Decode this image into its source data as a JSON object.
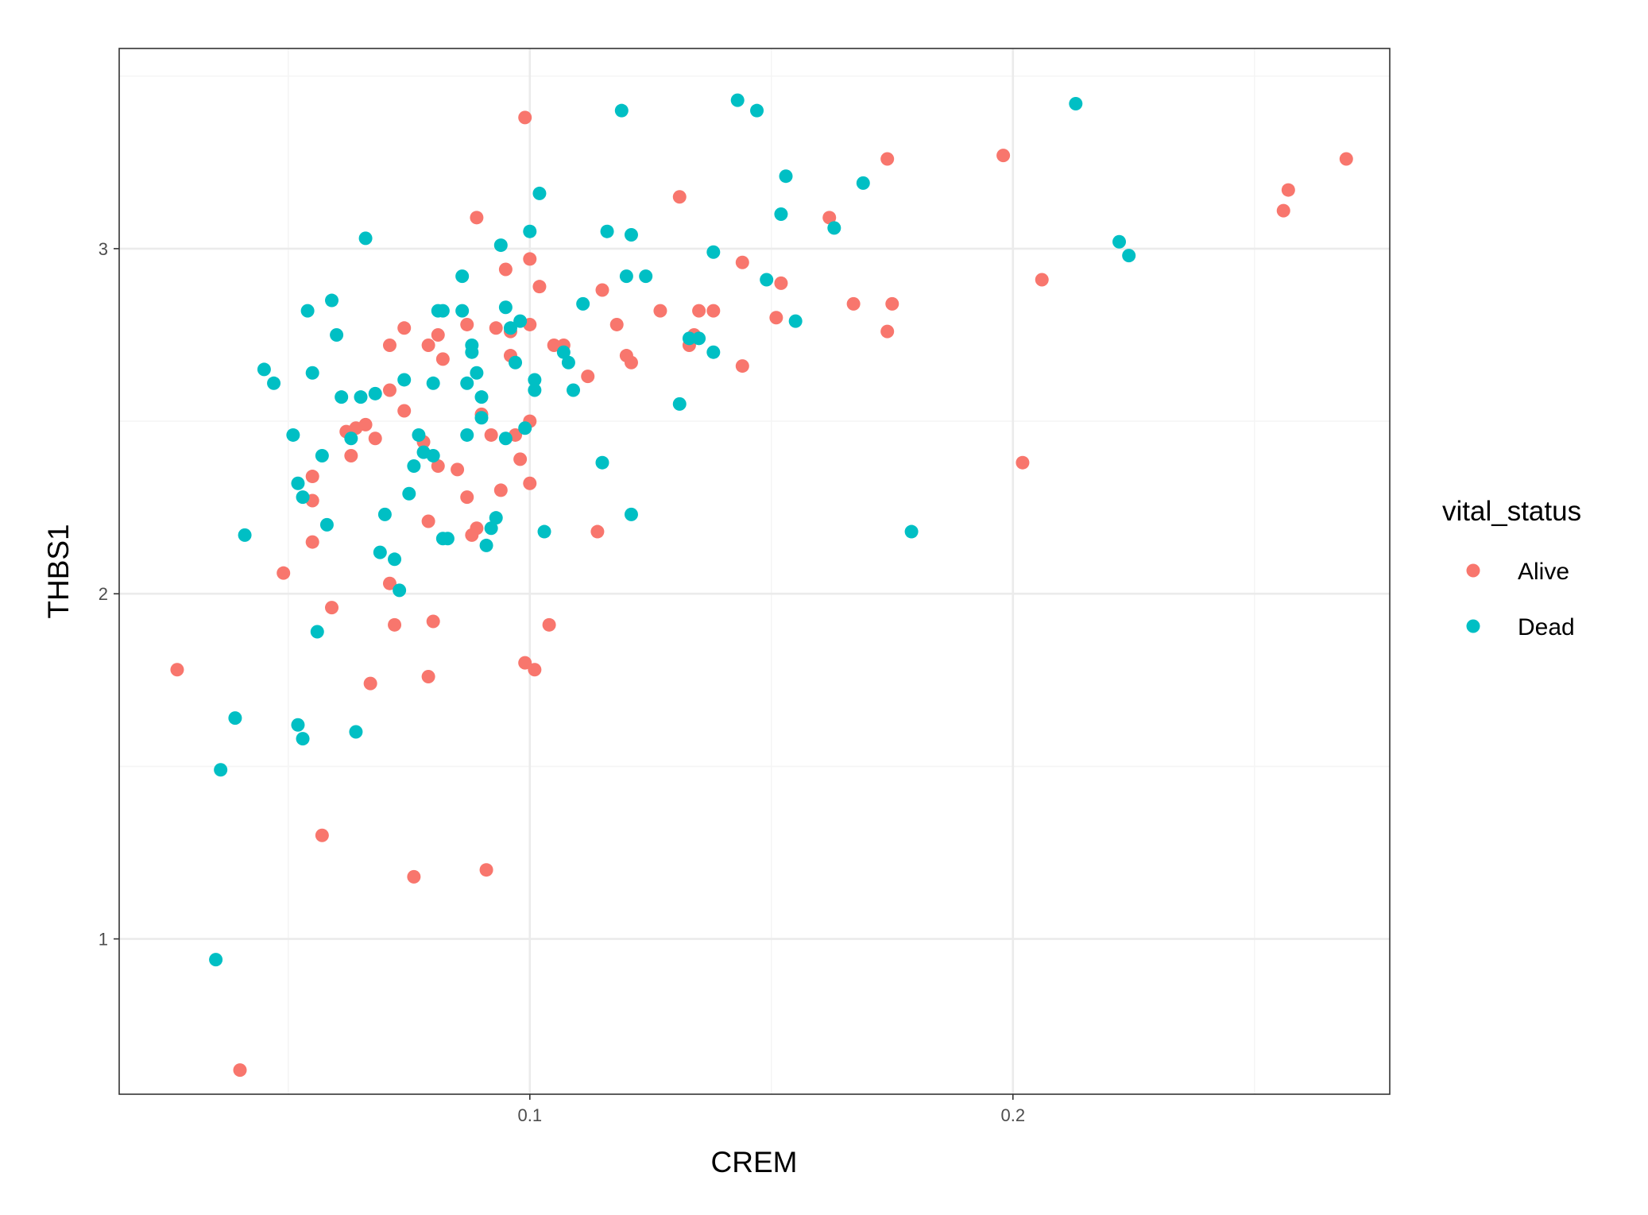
{
  "chart_data": {
    "type": "scatter",
    "xlabel": "CREM",
    "ylabel": "THBS1",
    "xlim": [
      0.015,
      0.278
    ],
    "ylim": [
      0.55,
      3.58
    ],
    "x_ticks": [
      {
        "value": 0.1,
        "label": "0.1"
      },
      {
        "value": 0.2,
        "label": "0.2"
      }
    ],
    "y_ticks": [
      {
        "value": 1,
        "label": "1"
      },
      {
        "value": 2,
        "label": "2"
      },
      {
        "value": 3,
        "label": "3"
      }
    ],
    "x_minor": [
      0.05,
      0.15,
      0.25
    ],
    "y_minor": [
      1.5,
      2.5,
      3.5
    ],
    "grid": true,
    "legend": {
      "title": "vital_status",
      "placement": "right"
    },
    "colors": {
      "Alive": "#F8766D",
      "Dead": "#00BFC4",
      "panel_border": "#333333",
      "grid_major": "#ebebeb",
      "grid_minor": "#f5f5f5"
    },
    "series": [
      {
        "name": "Alive",
        "points": [
          [
            0.027,
            1.78
          ],
          [
            0.04,
            0.62
          ],
          [
            0.049,
            2.06
          ],
          [
            0.055,
            2.34
          ],
          [
            0.055,
            2.27
          ],
          [
            0.055,
            2.15
          ],
          [
            0.057,
            1.3
          ],
          [
            0.059,
            1.96
          ],
          [
            0.062,
            2.47
          ],
          [
            0.063,
            2.4
          ],
          [
            0.064,
            2.48
          ],
          [
            0.066,
            2.49
          ],
          [
            0.067,
            1.74
          ],
          [
            0.068,
            2.45
          ],
          [
            0.071,
            2.72
          ],
          [
            0.071,
            2.59
          ],
          [
            0.071,
            2.03
          ],
          [
            0.072,
            1.91
          ],
          [
            0.074,
            2.77
          ],
          [
            0.074,
            2.53
          ],
          [
            0.076,
            1.18
          ],
          [
            0.078,
            2.44
          ],
          [
            0.079,
            2.72
          ],
          [
            0.079,
            2.21
          ],
          [
            0.079,
            1.76
          ],
          [
            0.08,
            1.92
          ],
          [
            0.081,
            2.75
          ],
          [
            0.081,
            2.37
          ],
          [
            0.082,
            2.68
          ],
          [
            0.085,
            2.36
          ],
          [
            0.087,
            2.78
          ],
          [
            0.087,
            2.28
          ],
          [
            0.088,
            2.17
          ],
          [
            0.089,
            2.19
          ],
          [
            0.089,
            3.09
          ],
          [
            0.09,
            2.52
          ],
          [
            0.091,
            1.2
          ],
          [
            0.092,
            2.46
          ],
          [
            0.093,
            2.77
          ],
          [
            0.094,
            2.3
          ],
          [
            0.095,
            2.94
          ],
          [
            0.096,
            2.76
          ],
          [
            0.096,
            2.69
          ],
          [
            0.097,
            2.46
          ],
          [
            0.098,
            2.39
          ],
          [
            0.099,
            3.38
          ],
          [
            0.099,
            1.8
          ],
          [
            0.1,
            2.32
          ],
          [
            0.1,
            2.5
          ],
          [
            0.1,
            2.97
          ],
          [
            0.1,
            2.78
          ],
          [
            0.101,
            1.78
          ],
          [
            0.102,
            2.89
          ],
          [
            0.104,
            1.91
          ],
          [
            0.105,
            2.72
          ],
          [
            0.107,
            2.72
          ],
          [
            0.112,
            2.63
          ],
          [
            0.114,
            2.18
          ],
          [
            0.115,
            2.88
          ],
          [
            0.118,
            2.78
          ],
          [
            0.12,
            2.69
          ],
          [
            0.121,
            2.67
          ],
          [
            0.127,
            2.82
          ],
          [
            0.131,
            3.15
          ],
          [
            0.133,
            2.72
          ],
          [
            0.134,
            2.75
          ],
          [
            0.135,
            2.82
          ],
          [
            0.138,
            2.82
          ],
          [
            0.144,
            2.96
          ],
          [
            0.144,
            2.66
          ],
          [
            0.151,
            2.8
          ],
          [
            0.152,
            2.9
          ],
          [
            0.162,
            3.09
          ],
          [
            0.167,
            2.84
          ],
          [
            0.174,
            3.26
          ],
          [
            0.174,
            2.76
          ],
          [
            0.175,
            2.84
          ],
          [
            0.198,
            3.27
          ],
          [
            0.202,
            2.38
          ],
          [
            0.206,
            2.91
          ],
          [
            0.256,
            3.11
          ],
          [
            0.257,
            3.17
          ],
          [
            0.269,
            3.26
          ]
        ]
      },
      {
        "name": "Dead",
        "points": [
          [
            0.035,
            0.94
          ],
          [
            0.036,
            1.49
          ],
          [
            0.039,
            1.64
          ],
          [
            0.041,
            2.17
          ],
          [
            0.045,
            2.65
          ],
          [
            0.047,
            2.61
          ],
          [
            0.051,
            2.46
          ],
          [
            0.052,
            2.32
          ],
          [
            0.052,
            1.62
          ],
          [
            0.053,
            2.28
          ],
          [
            0.053,
            1.58
          ],
          [
            0.054,
            2.82
          ],
          [
            0.055,
            2.64
          ],
          [
            0.056,
            1.89
          ],
          [
            0.057,
            2.4
          ],
          [
            0.058,
            2.2
          ],
          [
            0.059,
            2.85
          ],
          [
            0.06,
            2.75
          ],
          [
            0.061,
            2.57
          ],
          [
            0.063,
            2.45
          ],
          [
            0.064,
            1.6
          ],
          [
            0.065,
            2.57
          ],
          [
            0.066,
            3.03
          ],
          [
            0.068,
            2.58
          ],
          [
            0.069,
            2.12
          ],
          [
            0.07,
            2.23
          ],
          [
            0.072,
            2.1
          ],
          [
            0.073,
            2.01
          ],
          [
            0.074,
            2.62
          ],
          [
            0.075,
            2.29
          ],
          [
            0.076,
            2.37
          ],
          [
            0.077,
            2.46
          ],
          [
            0.078,
            2.41
          ],
          [
            0.08,
            2.4
          ],
          [
            0.08,
            2.61
          ],
          [
            0.081,
            2.82
          ],
          [
            0.082,
            2.82
          ],
          [
            0.082,
            2.16
          ],
          [
            0.083,
            2.16
          ],
          [
            0.086,
            2.92
          ],
          [
            0.086,
            2.82
          ],
          [
            0.087,
            2.46
          ],
          [
            0.087,
            2.61
          ],
          [
            0.088,
            2.7
          ],
          [
            0.088,
            2.72
          ],
          [
            0.089,
            2.64
          ],
          [
            0.09,
            2.57
          ],
          [
            0.09,
            2.51
          ],
          [
            0.091,
            2.14
          ],
          [
            0.092,
            2.19
          ],
          [
            0.093,
            2.22
          ],
          [
            0.094,
            3.01
          ],
          [
            0.095,
            2.83
          ],
          [
            0.095,
            2.45
          ],
          [
            0.096,
            2.77
          ],
          [
            0.097,
            2.67
          ],
          [
            0.098,
            2.79
          ],
          [
            0.099,
            2.48
          ],
          [
            0.1,
            3.05
          ],
          [
            0.101,
            2.62
          ],
          [
            0.101,
            2.59
          ],
          [
            0.102,
            3.16
          ],
          [
            0.103,
            2.18
          ],
          [
            0.107,
            2.7
          ],
          [
            0.108,
            2.67
          ],
          [
            0.109,
            2.59
          ],
          [
            0.111,
            2.84
          ],
          [
            0.115,
            2.38
          ],
          [
            0.116,
            3.05
          ],
          [
            0.119,
            3.4
          ],
          [
            0.12,
            2.92
          ],
          [
            0.121,
            2.23
          ],
          [
            0.121,
            3.04
          ],
          [
            0.124,
            2.92
          ],
          [
            0.131,
            2.55
          ],
          [
            0.133,
            2.74
          ],
          [
            0.135,
            2.74
          ],
          [
            0.138,
            2.99
          ],
          [
            0.138,
            2.7
          ],
          [
            0.143,
            3.43
          ],
          [
            0.147,
            3.4
          ],
          [
            0.149,
            2.91
          ],
          [
            0.152,
            3.1
          ],
          [
            0.153,
            3.21
          ],
          [
            0.155,
            2.79
          ],
          [
            0.163,
            3.06
          ],
          [
            0.169,
            3.19
          ],
          [
            0.179,
            2.18
          ],
          [
            0.213,
            3.42
          ],
          [
            0.222,
            3.02
          ],
          [
            0.224,
            2.98
          ]
        ]
      }
    ]
  }
}
